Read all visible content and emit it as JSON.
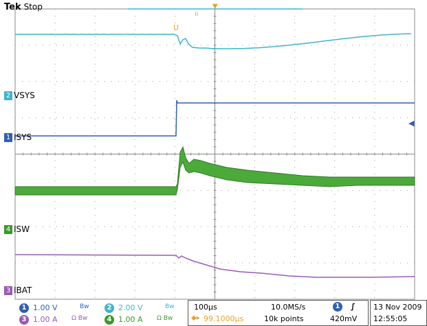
{
  "header": {
    "brand": "Tek",
    "state": "Stop"
  },
  "markers": {
    "trigger_pos": "T",
    "cursor": "U"
  },
  "channels": [
    {
      "id": "2",
      "name": "VSYS",
      "color": "#3fb5c8"
    },
    {
      "id": "1",
      "name": "ISYS",
      "color": "#2f5fb3"
    },
    {
      "id": "4",
      "name": "ISW",
      "color": "#3a9a2a"
    },
    {
      "id": "3",
      "name": "IBAT",
      "color": "#9b59b6"
    }
  ],
  "settings": {
    "ch1": {
      "num": "1",
      "scale": "1.00 V",
      "suffix": "Bw"
    },
    "ch2": {
      "num": "2",
      "scale": "2.00 V",
      "suffix": "Bw"
    },
    "ch3": {
      "num": "3",
      "scale": "1.00 A",
      "suffix": "Ω Bw"
    },
    "ch4": {
      "num": "4",
      "scale": "1.00 A",
      "suffix": "Ω Bw"
    }
  },
  "timebase": {
    "scale": "100µs",
    "sample_rate": "10.0MS/s",
    "offset": "99.1000µs",
    "points": "10k points"
  },
  "trigger": {
    "channel": "1",
    "slope": "∫",
    "level": "420mV"
  },
  "datetime": {
    "date": "13 Nov 2009",
    "time": "12:55:05"
  }
}
